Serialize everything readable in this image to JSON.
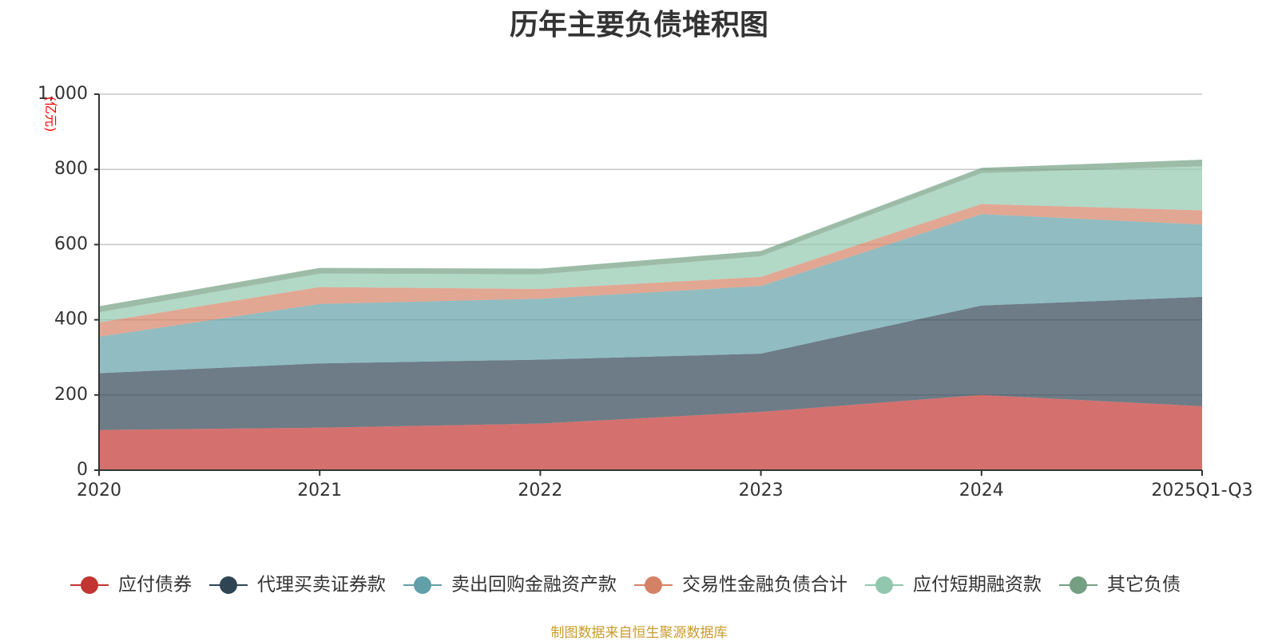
{
  "chart_data": {
    "type": "area",
    "stacked": true,
    "title": "历年主要负债堆积图",
    "unit": "(亿元)",
    "categories": [
      "2020",
      "2021",
      "2022",
      "2023",
      "2024",
      "2025Q1-Q3"
    ],
    "ylim": [
      0,
      1000
    ],
    "yticks": [
      "0",
      "200",
      "400",
      "600",
      "800",
      "1,000"
    ],
    "ytick_values": [
      0,
      200,
      400,
      600,
      800,
      1000
    ],
    "grid": true,
    "legend_position": "bottom",
    "series": [
      {
        "name": "应付债券",
        "color": "#c23531",
        "values": [
          107,
          113,
          124,
          155,
          200,
          170
        ]
      },
      {
        "name": "代理买卖证券款",
        "color": "#2f4554",
        "values": [
          151,
          171,
          170,
          155,
          238,
          291
        ]
      },
      {
        "name": "卖出回购金融资产款",
        "color": "#61a0a8",
        "values": [
          97,
          158,
          162,
          180,
          243,
          192
        ]
      },
      {
        "name": "交易性金融负债合计",
        "color": "#d48265",
        "values": [
          38,
          45,
          26,
          24,
          27,
          38
        ]
      },
      {
        "name": "应付短期融资款",
        "color": "#91c7ae",
        "values": [
          27,
          36,
          39,
          55,
          82,
          117
        ]
      },
      {
        "name": "其它负债",
        "color": "#749f83",
        "values": [
          16,
          15,
          15,
          14,
          14,
          18
        ]
      }
    ]
  },
  "source": "制图数据来自恒生聚源数据库"
}
